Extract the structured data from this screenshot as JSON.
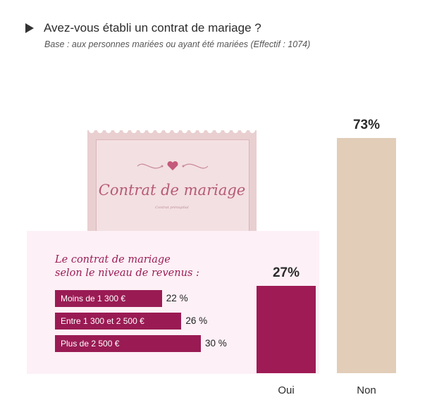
{
  "header": {
    "title": "Avez-vous établi un contrat de mariage ?",
    "subtitle": "Base : aux personnes mariées ou ayant été mariées (Effectif : 1074)"
  },
  "stamp": {
    "title": "Contrat de mariage",
    "small_text": "Contrat prénuptial"
  },
  "inset": {
    "title_line1": "Le contrat de mariage",
    "title_line2": "selon le niveau de revenus :"
  },
  "colors": {
    "oui": "#9e1b55",
    "non": "#e1cdb8",
    "inset_bar": "#9a1b54",
    "inset_bg": "#fdf0f6"
  },
  "chart_data": [
    {
      "type": "bar",
      "categories": [
        "Oui",
        "Non"
      ],
      "values": [
        27,
        73
      ],
      "value_labels": [
        "27%",
        "73%"
      ],
      "ylim": [
        0,
        100
      ]
    },
    {
      "type": "bar",
      "orientation": "horizontal",
      "categories": [
        "Moins de 1 300 €",
        "Entre 1 300 et 2 500 €",
        "Plus de 2 500 €"
      ],
      "values": [
        22,
        26,
        30
      ],
      "value_labels": [
        "22 %",
        "26 %",
        "30 %"
      ]
    }
  ]
}
